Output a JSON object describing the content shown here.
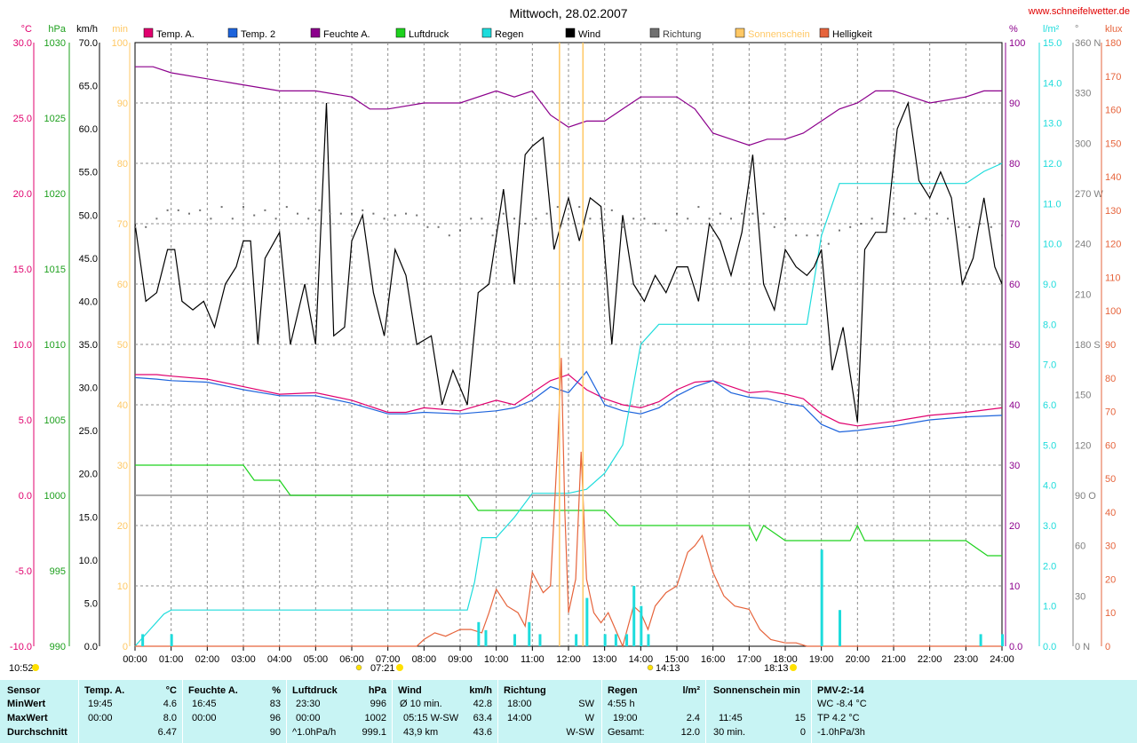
{
  "site": "www.schneifelwetter.de",
  "chart_data": {
    "type": "line",
    "title": "Mittwoch, 28.02.2007",
    "x_labels": [
      "00:00",
      "01:00",
      "02:00",
      "03:00",
      "04:00",
      "05:00",
      "06:00",
      "07:00",
      "08:00",
      "09:00",
      "10:00",
      "11:00",
      "12:00",
      "13:00",
      "14:00",
      "15:00",
      "16:00",
      "17:00",
      "18:00",
      "19:00",
      "20:00",
      "21:00",
      "22:00",
      "23:00",
      "24:00"
    ],
    "xlim": [
      0,
      24
    ],
    "legend": [
      {
        "name": "Temp. A.",
        "color": "#e0006e"
      },
      {
        "name": "Temp. 2",
        "color": "#1e64dc"
      },
      {
        "name": "Feuchte A.",
        "color": "#8c008c"
      },
      {
        "name": "Luftdruck",
        "color": "#1ed21e"
      },
      {
        "name": "Regen",
        "color": "#1edcdc"
      },
      {
        "name": "Wind",
        "color": "#000000"
      },
      {
        "name": "Richtung",
        "color": "#707070"
      },
      {
        "name": "Sonnenschein",
        "color": "#ffc864"
      },
      {
        "name": "Helligkeit",
        "color": "#e6643c"
      }
    ],
    "axes": {
      "temp": {
        "unit": "°C",
        "ylim": [
          -10,
          30
        ],
        "ticks": [
          "30.0",
          "25.0",
          "20.0",
          "15.0",
          "10.0",
          "5.0",
          "0.0",
          "-5.0",
          "-10.0"
        ],
        "color": "#e0006e"
      },
      "pressure": {
        "unit": "hPa",
        "ylim": [
          990,
          1030
        ],
        "ticks": [
          "1030",
          "1025",
          "1020",
          "1015",
          "1010",
          "1005",
          "1000",
          "995",
          "990"
        ],
        "color": "#1ea01e"
      },
      "wind": {
        "unit": "km/h",
        "ylim": [
          0,
          70
        ],
        "ticks": [
          "70.0",
          "65.0",
          "60.0",
          "55.0",
          "50.0",
          "45.0",
          "40.0",
          "35.0",
          "30.0",
          "25.0",
          "20.0",
          "15.0",
          "10.0",
          "5.0",
          "0.0"
        ],
        "color": "#000000"
      },
      "sunshine": {
        "unit": "min",
        "ylim": [
          0,
          100
        ],
        "ticks": [
          "100",
          "90",
          "80",
          "70",
          "60",
          "50",
          "40",
          "30",
          "20",
          "10",
          "0"
        ],
        "color": "#ffc864"
      },
      "humidity": {
        "unit": "%",
        "ylim": [
          0,
          100
        ],
        "ticks": [
          "100",
          "90",
          "80",
          "70",
          "60",
          "50",
          "40",
          "30",
          "20",
          "10",
          "0.0"
        ],
        "color": "#8c008c"
      },
      "rain": {
        "unit": "l/m²",
        "ylim": [
          0,
          15
        ],
        "ticks": [
          "15.0",
          "14.0",
          "13.0",
          "12.0",
          "11.0",
          "10.0",
          "9.0",
          "8.0",
          "7.0",
          "6.0",
          "5.0",
          "4.0",
          "3.0",
          "2.0",
          "1.0",
          "0.0"
        ],
        "color": "#1edcdc"
      },
      "direction": {
        "unit": "°",
        "ylim": [
          0,
          360
        ],
        "ticks": [
          "360 N",
          "330",
          "300",
          "270 W",
          "240",
          "210",
          "180 S",
          "150",
          "120",
          "90 O",
          "60",
          "30",
          "0 N"
        ],
        "color": "#808080"
      },
      "brightness": {
        "unit": "klux",
        "ylim": [
          0,
          180
        ],
        "ticks": [
          "180",
          "170",
          "160",
          "150",
          "140",
          "130",
          "120",
          "110",
          "100",
          "90",
          "80",
          "70",
          "60",
          "50",
          "40",
          "30",
          "20",
          "10",
          "0"
        ],
        "color": "#e6643c"
      }
    },
    "markers": {
      "sunrise": "07:21",
      "sunset": "18:13",
      "moonrise": "14:13",
      "moonset": "10:52"
    },
    "series": [
      {
        "name": "Temp. A.",
        "axis": "temp",
        "color": "#e0006e",
        "x": [
          0,
          0.6,
          1,
          2,
          3,
          4,
          5,
          6,
          7,
          7.5,
          8,
          9,
          10,
          10.5,
          11,
          11.5,
          12,
          12.5,
          13,
          13.5,
          14,
          14.5,
          15,
          15.5,
          16,
          16.5,
          17,
          17.5,
          18,
          18.5,
          19,
          19.5,
          20,
          21,
          22,
          23,
          24
        ],
        "y": [
          8.0,
          8.0,
          7.9,
          7.7,
          7.2,
          6.7,
          6.8,
          6.3,
          5.5,
          5.5,
          5.8,
          5.6,
          6.3,
          6.0,
          6.8,
          7.6,
          8.0,
          7.0,
          6.4,
          6.0,
          5.8,
          6.2,
          7.0,
          7.5,
          7.6,
          7.2,
          6.8,
          6.9,
          6.7,
          6.4,
          5.4,
          4.8,
          4.6,
          4.9,
          5.3,
          5.5,
          5.8
        ]
      },
      {
        "name": "Temp. 2",
        "axis": "temp",
        "color": "#1e64dc",
        "x": [
          0,
          0.6,
          1,
          2,
          3,
          4,
          5,
          6,
          7,
          7.5,
          8,
          9,
          10,
          10.5,
          11,
          11.5,
          12,
          12.5,
          13,
          13.5,
          14,
          14.5,
          15,
          15.5,
          16,
          16.5,
          17,
          17.5,
          18,
          18.5,
          19,
          19.5,
          20,
          21,
          22,
          23,
          24
        ],
        "y": [
          7.8,
          7.7,
          7.6,
          7.5,
          7.0,
          6.6,
          6.6,
          6.1,
          5.4,
          5.4,
          5.5,
          5.4,
          5.6,
          5.8,
          6.3,
          7.2,
          6.8,
          8.2,
          6.0,
          5.6,
          5.4,
          5.8,
          6.6,
          7.2,
          7.6,
          6.8,
          6.5,
          6.4,
          6.1,
          5.9,
          4.7,
          4.2,
          4.3,
          4.6,
          5.0,
          5.2,
          5.3
        ]
      },
      {
        "name": "Feuchte A.",
        "axis": "humidity",
        "color": "#8c008c",
        "x": [
          0,
          0.5,
          1,
          2,
          3,
          4,
          5,
          6,
          6.5,
          7,
          8,
          9,
          10,
          10.5,
          11,
          11.5,
          12,
          12.5,
          13,
          13.5,
          14,
          14.5,
          15,
          15.5,
          16,
          16.5,
          17,
          17.5,
          18,
          18.5,
          19,
          19.5,
          20,
          20.5,
          21,
          21.5,
          22,
          23,
          23.5,
          24
        ],
        "y": [
          96,
          96,
          95,
          94,
          93,
          92,
          92,
          91,
          89,
          89,
          90,
          90,
          92,
          91,
          92,
          88,
          86,
          87,
          87,
          89,
          91,
          91,
          91,
          89,
          85,
          84,
          83,
          84,
          84,
          85,
          87,
          89,
          90,
          92,
          92,
          91,
          90,
          91,
          92,
          92
        ]
      },
      {
        "name": "Luftdruck",
        "axis": "pressure",
        "color": "#1ed21e",
        "x": [
          0,
          3,
          3.3,
          4,
          4.3,
          9.2,
          9.5,
          10,
          13,
          13.4,
          17,
          17.2,
          17.4,
          18,
          18.8,
          19,
          19.8,
          20,
          20.2,
          23,
          23.6,
          24
        ],
        "y": [
          1002,
          1002,
          1001,
          1001,
          1000,
          1000,
          999,
          999,
          999,
          998,
          998,
          997,
          998,
          997,
          997,
          997,
          997,
          998,
          997,
          997,
          996,
          996
        ]
      },
      {
        "name": "Regen",
        "axis": "rain",
        "color": "#1edcdc",
        "x": [
          0,
          0.2,
          0.8,
          1,
          9.2,
          9.4,
          9.6,
          10,
          10.5,
          11,
          11.5,
          12,
          12.5,
          13,
          13.5,
          14,
          14.5,
          15,
          18.3,
          18.6,
          19,
          19.5,
          20,
          23,
          23.5,
          24
        ],
        "y": [
          0,
          0.2,
          0.8,
          0.9,
          0.9,
          1.6,
          2.7,
          2.7,
          3.2,
          3.8,
          3.8,
          3.8,
          3.9,
          4.3,
          5.0,
          7.5,
          8.0,
          8.0,
          8.0,
          8.0,
          10.2,
          11.5,
          11.5,
          11.5,
          11.8,
          12.0
        ]
      },
      {
        "name": "Wind",
        "axis": "wind",
        "color": "#000000",
        "x": [
          0,
          0.3,
          0.6,
          0.9,
          1.1,
          1.3,
          1.6,
          1.9,
          2.2,
          2.5,
          2.8,
          3.0,
          3.2,
          3.4,
          3.6,
          4.0,
          4.3,
          4.7,
          5.0,
          5.3,
          5.5,
          5.8,
          6.0,
          6.3,
          6.6,
          6.9,
          7.2,
          7.5,
          7.8,
          8.2,
          8.5,
          8.8,
          9.2,
          9.5,
          9.8,
          10.2,
          10.5,
          10.8,
          11.0,
          11.3,
          11.6,
          12.0,
          12.3,
          12.6,
          12.9,
          13.2,
          13.5,
          13.8,
          14.1,
          14.4,
          14.7,
          15.0,
          15.3,
          15.6,
          15.9,
          16.2,
          16.5,
          16.8,
          17.1,
          17.4,
          17.7,
          18.0,
          18.3,
          18.6,
          18.8,
          19.0,
          19.3,
          19.6,
          20.0,
          20.2,
          20.5,
          20.8,
          21.1,
          21.4,
          21.7,
          22.0,
          22.3,
          22.6,
          22.9,
          23.2,
          23.5,
          23.8,
          24.0
        ],
        "y": [
          49,
          40,
          41,
          46,
          46,
          40,
          39,
          40,
          37,
          42,
          44,
          47,
          47,
          35,
          45,
          48,
          35,
          42,
          35,
          63,
          36,
          37,
          47,
          50,
          41,
          36,
          46,
          43,
          35,
          36,
          28,
          32,
          28,
          41,
          42,
          53,
          42,
          57,
          58,
          59,
          46,
          52,
          47,
          52,
          51,
          35,
          50,
          42,
          40,
          43,
          41,
          44,
          44,
          40,
          49,
          47,
          43,
          48,
          57,
          42,
          39,
          46,
          44,
          43,
          44,
          46,
          32,
          37,
          26,
          46,
          48,
          48,
          60,
          63,
          54,
          52,
          55,
          52,
          42,
          45,
          52,
          44,
          42
        ]
      },
      {
        "name": "Richtung",
        "axis": "direction",
        "color": "#707070",
        "marker": "dot",
        "x": [
          0,
          0.3,
          0.6,
          0.9,
          1.2,
          1.5,
          1.8,
          2.1,
          2.4,
          2.7,
          3.0,
          3.3,
          3.6,
          3.9,
          4.2,
          4.5,
          4.8,
          5.1,
          5.4,
          5.7,
          6.0,
          6.3,
          6.6,
          6.9,
          7.2,
          7.5,
          7.8,
          8.1,
          8.4,
          8.7,
          9.0,
          9.3,
          9.6,
          9.9,
          10.2,
          10.5,
          10.8,
          11.1,
          11.4,
          11.7,
          12.0,
          12.3,
          12.6,
          12.9,
          13.2,
          13.5,
          13.8,
          14.1,
          14.4,
          14.7,
          15.0,
          15.3,
          15.6,
          15.9,
          16.2,
          16.5,
          16.8,
          17.1,
          17.4,
          17.7,
          18.0,
          18.3,
          18.6,
          18.9,
          19.2,
          19.5,
          19.8,
          20.1,
          20.4,
          20.7,
          21.0,
          21.3,
          21.6,
          21.9,
          22.2,
          22.5,
          22.8,
          23.1,
          23.4,
          23.7,
          24.0
        ],
        "y": [
          250,
          250,
          255,
          260,
          260,
          258,
          260,
          255,
          262,
          255,
          262,
          257,
          260,
          255,
          262,
          258,
          255,
          260,
          258,
          258,
          258,
          260,
          258,
          255,
          257,
          258,
          257,
          250,
          250,
          245,
          248,
          255,
          255,
          245,
          258,
          255,
          252,
          255,
          258,
          262,
          255,
          262,
          255,
          255,
          260,
          250,
          255,
          255,
          252,
          248,
          258,
          255,
          262,
          255,
          258,
          255,
          258,
          258,
          258,
          250,
          255,
          245,
          245,
          245,
          240,
          248,
          250,
          252,
          255,
          252,
          258,
          255,
          258,
          255,
          258,
          255,
          250,
          250,
          252,
          250,
          245
        ]
      },
      {
        "name": "Helligkeit",
        "axis": "brightness",
        "color": "#e6643c",
        "x": [
          0,
          7.8,
          8.0,
          8.3,
          8.6,
          9.0,
          9.3,
          9.6,
          9.8,
          10.0,
          10.3,
          10.6,
          10.8,
          11.0,
          11.3,
          11.5,
          11.7,
          11.8,
          11.9,
          12.0,
          12.2,
          12.35,
          12.5,
          12.7,
          12.9,
          13.1,
          13.3,
          13.5,
          13.8,
          14.0,
          14.2,
          14.4,
          14.7,
          15.0,
          15.3,
          15.5,
          15.7,
          16.0,
          16.3,
          16.6,
          17.0,
          17.3,
          17.6,
          18.0,
          18.3,
          18.6,
          19,
          20,
          24
        ],
        "y": [
          0,
          0,
          2,
          4,
          3,
          5,
          5,
          4,
          10,
          17,
          12,
          10,
          6,
          22,
          16,
          18,
          60,
          86,
          40,
          10,
          20,
          58,
          20,
          10,
          7,
          10,
          5,
          0,
          12,
          10,
          5,
          12,
          16,
          18,
          28,
          30,
          33,
          22,
          15,
          12,
          11,
          5,
          2,
          1,
          1,
          0,
          0,
          0,
          0
        ]
      },
      {
        "name": "Regen-Menge",
        "axis": "rain",
        "color": "#1edcdc",
        "type": "bar",
        "x": [
          0.2,
          1.0,
          9.5,
          9.7,
          10.5,
          10.9,
          11.2,
          12.2,
          12.5,
          13.0,
          13.3,
          13.6,
          13.8,
          14.0,
          14.2,
          19.0,
          19.5,
          23.4,
          24.0
        ],
        "y": [
          0.3,
          0.3,
          0.6,
          0.4,
          0.3,
          0.6,
          0.3,
          0.3,
          1.2,
          0.3,
          0.3,
          0.3,
          1.5,
          1.0,
          0.3,
          2.4,
          0.9,
          0.3,
          0.3
        ]
      }
    ]
  },
  "stats": {
    "sensor": {
      "title": "Sensor",
      "rows": [
        "MinWert",
        "MaxWert",
        "Durchschnitt"
      ]
    },
    "temp": {
      "title": "Temp. A.",
      "unit": "°C",
      "rows": [
        [
          "19:45",
          "4.6"
        ],
        [
          "00:00",
          "8.0"
        ],
        [
          "",
          "6.47"
        ]
      ]
    },
    "humidity": {
      "title": "Feuchte A.",
      "unit": "%",
      "rows": [
        [
          "16:45",
          "83"
        ],
        [
          "00:00",
          "96"
        ],
        [
          "",
          "90"
        ]
      ]
    },
    "pressure": {
      "title": "Luftdruck",
      "unit": "hPa",
      "rows": [
        [
          "23:30",
          "996"
        ],
        [
          "00:00",
          "1002"
        ],
        [
          "^1.0hPa/h",
          "999.1"
        ]
      ]
    },
    "wind": {
      "title": "Wind",
      "unit": "km/h",
      "rows": [
        [
          "Ø 10 min.",
          "42.8"
        ],
        [
          "05:15  W-SW",
          "63.4"
        ],
        [
          "43,9 km",
          "43.6"
        ]
      ]
    },
    "direction": {
      "title": "Richtung",
      "rows": [
        [
          "18:00",
          "SW"
        ],
        [
          "14:00",
          "W"
        ],
        [
          "",
          "W-SW"
        ]
      ]
    },
    "rain": {
      "title": "Regen",
      "unit": "l/m²",
      "rows": [
        [
          "4:55 h",
          ""
        ],
        [
          "19:00",
          "2.4"
        ],
        [
          "Gesamt:",
          "12.0"
        ]
      ]
    },
    "sunshine": {
      "title": "Sonnenschein min",
      "rows": [
        [
          "11:45",
          "15"
        ],
        [
          "30 min.",
          "0"
        ]
      ]
    },
    "pmv": {
      "title": "PMV-2:-14",
      "rows": [
        "WC -8.4 °C",
        "TP 4.2 °C",
        "-1.0hPa/3h"
      ]
    }
  }
}
